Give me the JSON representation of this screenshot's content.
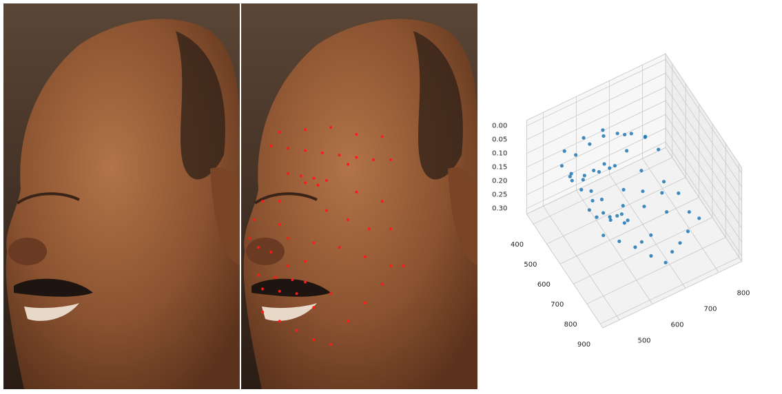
{
  "chart_data": {
    "type": "scatter3d",
    "color": "#1f77b4",
    "overlay_color": "#ff1a1a",
    "x": [
      440,
      445,
      450,
      455,
      460,
      465,
      470,
      500,
      505,
      510,
      515,
      520,
      525,
      560,
      600,
      640,
      660,
      670,
      580,
      600,
      620,
      650,
      660,
      680,
      700,
      620,
      560,
      720,
      725,
      730,
      735,
      750,
      755,
      760,
      800,
      820,
      840,
      860,
      870,
      820,
      780,
      740,
      700,
      410,
      405,
      400,
      415,
      420,
      480,
      470,
      540,
      760,
      790,
      700,
      690,
      640,
      610,
      560
    ],
    "y": [
      520,
      560,
      600,
      640,
      680,
      720,
      760,
      560,
      590,
      620,
      650,
      600,
      630,
      500,
      480,
      470,
      490,
      520,
      650,
      700,
      750,
      620,
      680,
      740,
      800,
      800,
      780,
      490,
      530,
      570,
      600,
      500,
      540,
      580,
      500,
      540,
      580,
      620,
      660,
      700,
      740,
      780,
      830,
      540,
      600,
      660,
      720,
      780,
      700,
      800,
      720,
      660,
      620,
      560,
      600,
      560,
      540,
      540
    ],
    "z": [
      0.12,
      0.1,
      0.08,
      0.07,
      0.08,
      0.1,
      0.13,
      0.15,
      0.13,
      0.12,
      0.14,
      0.13,
      0.13,
      0.05,
      0.02,
      0.0,
      0.03,
      0.08,
      0.18,
      0.2,
      0.22,
      0.17,
      0.2,
      0.24,
      0.26,
      0.25,
      0.24,
      0.06,
      0.09,
      0.12,
      0.15,
      0.07,
      0.1,
      0.13,
      0.1,
      0.13,
      0.16,
      0.2,
      0.24,
      0.26,
      0.28,
      0.29,
      0.3,
      0.1,
      0.09,
      0.1,
      0.14,
      0.18,
      0.14,
      0.2,
      0.18,
      0.22,
      0.2,
      0.14,
      0.16,
      0.12,
      0.1,
      0.08
    ],
    "xlim": [
      350,
      920
    ],
    "ylim": [
      450,
      870
    ],
    "zlim": [
      -0.02,
      0.32
    ],
    "xticks": [
      400,
      500,
      600,
      700,
      800,
      900
    ],
    "yticks": [
      500,
      600,
      700,
      800
    ],
    "zticks": [
      {
        "value": 0,
        "label": "0.00"
      },
      0.05,
      {
        "value": 0.1,
        "label": "0.10"
      },
      0.15,
      {
        "value": 0.2,
        "label": "0.20"
      },
      0.25,
      {
        "value": 0.3,
        "label": "0.30"
      }
    ],
    "grid": true
  }
}
